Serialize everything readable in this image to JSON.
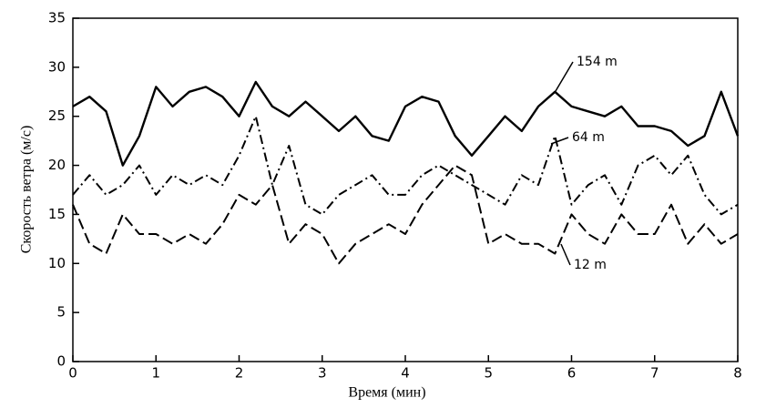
{
  "chart_data": {
    "type": "line",
    "xlabel": "Время (мин)",
    "ylabel": "Скорость ветра (м/с)",
    "x": [
      0,
      0.2,
      0.4,
      0.6,
      0.8,
      1.0,
      1.2,
      1.4,
      1.6,
      1.8,
      2.0,
      2.2,
      2.4,
      2.6,
      2.8,
      3.0,
      3.2,
      3.4,
      3.6,
      3.8,
      4.0,
      4.2,
      4.4,
      4.6,
      4.8,
      5.0,
      5.2,
      5.4,
      5.6,
      5.8,
      6.0,
      6.2,
      6.4,
      6.6,
      6.8,
      7.0,
      7.2,
      7.4,
      7.6,
      7.8,
      8.0
    ],
    "series": [
      {
        "name": "154 m",
        "color": "#000000",
        "line_style": "solid",
        "values": [
          26,
          27,
          25.5,
          20,
          23,
          28,
          26,
          27.5,
          28,
          27,
          25,
          28.5,
          26,
          25,
          26.5,
          25,
          23.5,
          25,
          23,
          22.5,
          26,
          27,
          26.5,
          23,
          21,
          23,
          25,
          23.5,
          26,
          27.5,
          26,
          25.5,
          25,
          26,
          24,
          24,
          23.5,
          22,
          23,
          27.5,
          23
        ]
      },
      {
        "name": "64 m",
        "color": "#000000",
        "line_style": "dashdot",
        "values": [
          17,
          19,
          17,
          18,
          20,
          17,
          19,
          18,
          19,
          18,
          21,
          25,
          18,
          22,
          16,
          15,
          17,
          18,
          19,
          17,
          17,
          19,
          20,
          19,
          18,
          17,
          16,
          19,
          18,
          23,
          16,
          18,
          19,
          16,
          20,
          21,
          19,
          21,
          17,
          15,
          16
        ]
      },
      {
        "name": "12 m",
        "color": "#000000",
        "line_style": "dashed",
        "values": [
          16,
          12,
          11,
          15,
          13,
          13,
          12,
          13,
          12,
          14,
          17,
          16,
          18,
          12,
          14,
          13,
          10,
          12,
          13,
          14,
          13,
          16,
          18,
          20,
          19,
          12,
          13,
          12,
          12,
          11,
          15,
          13,
          12,
          15,
          13,
          13,
          16,
          12,
          14,
          12,
          13
        ]
      }
    ],
    "xlim": [
      0,
      8
    ],
    "xticks": [
      0,
      1,
      2,
      3,
      4,
      5,
      6,
      7,
      8
    ],
    "ylim": [
      0,
      35
    ],
    "yticks": [
      0,
      5,
      10,
      15,
      20,
      25,
      30,
      35
    ]
  }
}
